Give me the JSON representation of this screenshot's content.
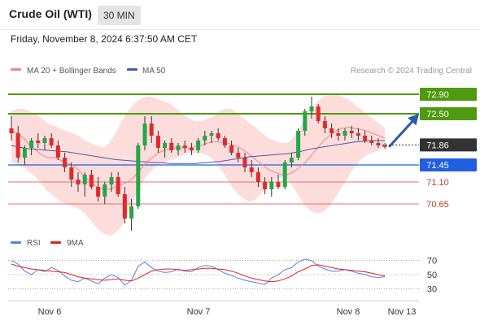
{
  "header": {
    "title": "Crude Oil (WTI)",
    "timeframe": "30 MIN",
    "datetime": "Friday, November 8, 2024 6:37:50 AM CET"
  },
  "colors": {
    "up": "#22a845",
    "down": "#e02a2a",
    "wick": "#333333",
    "band_fill": "#fdd8d8",
    "ma20": "#ee8888",
    "ma50": "#4a5aa8",
    "resistance": "#4f9a0e",
    "support": "#2060e0",
    "pivot": "#333333",
    "lower": "#e87070",
    "rsi": "#5b7ee5",
    "rsi_ma": "#e02020"
  },
  "chart_data": [
    {
      "type": "line",
      "title": "",
      "legend": [
        {
          "name": "MA 20 + Bollinger Bands",
          "color": "#ee8888"
        },
        {
          "name": "MA 50",
          "color": "#4a5aa8"
        }
      ],
      "credit": "Research © 2024 Trading Central",
      "ylim": [
        70.0,
        73.25
      ],
      "levels": [
        {
          "value": "72.90",
          "kind": "resistance"
        },
        {
          "value": "72.50",
          "kind": "resistance"
        },
        {
          "value": "71.86",
          "kind": "current"
        },
        {
          "value": "71.45",
          "kind": "support"
        },
        {
          "value": "71.10",
          "kind": "lower"
        },
        {
          "value": "70.65",
          "kind": "lower"
        }
      ],
      "x_ticks": [
        "Nov 6",
        "Nov 7",
        "Nov 8",
        "Nov 13"
      ],
      "series": [
        {
          "name": "MA 20 + Bollinger Bands",
          "values": [
            72.15,
            72.1,
            72.0,
            71.85,
            71.75,
            71.65,
            71.6,
            71.6,
            71.55,
            71.5,
            71.45,
            71.35,
            71.2,
            71.1,
            71.0,
            70.95,
            70.95,
            71.0,
            71.05,
            71.1,
            71.2,
            71.35,
            71.5,
            71.6,
            71.7,
            71.75,
            71.8,
            71.8,
            71.8,
            71.8,
            71.82,
            71.85,
            71.9,
            71.92,
            71.92,
            71.9,
            71.87,
            71.82,
            71.75,
            71.65,
            71.55,
            71.45,
            71.35,
            71.3,
            71.25,
            71.25,
            71.3,
            71.4,
            71.5,
            71.65,
            71.8,
            71.95,
            72.05,
            72.15,
            72.2,
            72.22,
            72.2,
            72.18,
            72.15,
            72.1,
            72.05,
            72.0
          ]
        },
        {
          "name": "MA 50",
          "values": [
            71.85,
            71.82,
            71.8,
            71.78,
            71.77,
            71.76,
            71.75,
            71.74,
            71.73,
            71.72,
            71.7,
            71.68,
            71.66,
            71.64,
            71.62,
            71.6,
            71.58,
            71.56,
            71.55,
            71.54,
            71.53,
            71.52,
            71.51,
            71.5,
            71.5,
            71.49,
            71.48,
            71.48,
            71.48,
            71.48,
            71.48,
            71.49,
            71.5,
            71.51,
            71.52,
            71.54,
            71.56,
            71.58,
            71.6,
            71.62,
            71.63,
            71.64,
            71.65,
            71.66,
            71.67,
            71.68,
            71.7,
            71.72,
            71.75,
            71.78,
            71.8,
            71.82,
            71.84,
            71.86,
            71.88,
            71.9,
            71.92,
            71.93,
            71.94,
            71.95,
            71.95,
            71.95
          ]
        },
        {
          "name": "upper band",
          "values": [
            72.55,
            72.6,
            72.6,
            72.55,
            72.5,
            72.4,
            72.3,
            72.25,
            72.2,
            72.15,
            72.1,
            72.05,
            71.95,
            71.9,
            71.85,
            71.8,
            71.9,
            72.1,
            72.35,
            72.55,
            72.7,
            72.8,
            72.85,
            72.85,
            72.8,
            72.75,
            72.7,
            72.6,
            72.5,
            72.4,
            72.35,
            72.35,
            72.4,
            72.45,
            72.55,
            72.6,
            72.6,
            72.5,
            72.4,
            72.3,
            72.2,
            72.1,
            72.0,
            71.95,
            71.9,
            71.9,
            72.0,
            72.2,
            72.4,
            72.6,
            72.75,
            72.85,
            72.9,
            72.9,
            72.85,
            72.8,
            72.7,
            72.6,
            72.5,
            72.4,
            72.3,
            72.2
          ]
        },
        {
          "name": "lower band",
          "values": [
            71.5,
            71.45,
            71.4,
            71.3,
            71.2,
            71.05,
            70.9,
            70.8,
            70.7,
            70.65,
            70.6,
            70.55,
            70.45,
            70.3,
            70.15,
            70.05,
            70.0,
            70.05,
            70.2,
            70.45,
            70.75,
            71.0,
            71.2,
            71.35,
            71.45,
            71.5,
            71.55,
            71.6,
            71.65,
            71.7,
            71.7,
            71.7,
            71.65,
            71.55,
            71.4,
            71.2,
            71.0,
            70.85,
            70.75,
            70.7,
            70.75,
            70.9,
            71.05,
            71.15,
            71.2,
            71.15,
            71.0,
            70.8,
            70.6,
            70.5,
            70.45,
            70.5,
            70.6,
            70.8,
            71.0,
            71.2,
            71.4,
            71.55,
            71.65,
            71.7,
            71.75,
            71.8
          ]
        },
        {
          "name": "candles",
          "ohlc": [
            [
              72.2,
              72.45,
              71.95,
              72.1
            ],
            [
              72.1,
              72.25,
              71.5,
              71.6
            ],
            [
              71.6,
              71.85,
              71.45,
              71.8
            ],
            [
              71.8,
              72.0,
              71.65,
              71.95
            ],
            [
              71.95,
              72.1,
              71.8,
              71.9
            ],
            [
              71.9,
              72.05,
              71.75,
              72.0
            ],
            [
              72.0,
              72.1,
              71.8,
              71.85
            ],
            [
              71.85,
              71.95,
              71.55,
              71.6
            ],
            [
              71.6,
              71.7,
              71.3,
              71.4
            ],
            [
              71.4,
              71.5,
              71.0,
              71.15
            ],
            [
              71.15,
              71.3,
              70.9,
              71.05
            ],
            [
              71.05,
              71.3,
              70.8,
              71.25
            ],
            [
              71.25,
              71.35,
              70.95,
              71.0
            ],
            [
              71.0,
              71.2,
              70.7,
              70.8
            ],
            [
              70.8,
              71.1,
              70.65,
              71.05
            ],
            [
              71.05,
              71.3,
              70.9,
              71.2
            ],
            [
              71.2,
              71.3,
              70.8,
              70.85
            ],
            [
              70.85,
              71.0,
              70.25,
              70.35
            ],
            [
              70.35,
              70.75,
              70.1,
              70.6
            ],
            [
              70.6,
              71.9,
              70.55,
              71.85
            ],
            [
              71.85,
              72.45,
              71.75,
              72.3
            ],
            [
              72.3,
              72.45,
              71.9,
              72.05
            ],
            [
              72.05,
              72.15,
              71.7,
              71.8
            ],
            [
              71.8,
              71.95,
              71.6,
              71.9
            ],
            [
              71.9,
              72.0,
              71.7,
              71.75
            ],
            [
              71.75,
              71.9,
              71.65,
              71.85
            ],
            [
              71.85,
              71.95,
              71.7,
              71.8
            ],
            [
              71.8,
              71.9,
              71.65,
              71.75
            ],
            [
              71.75,
              72.0,
              71.7,
              71.95
            ],
            [
              71.95,
              72.15,
              71.85,
              72.05
            ],
            [
              72.05,
              72.15,
              71.9,
              72.1
            ],
            [
              72.1,
              72.2,
              71.95,
              72.0
            ],
            [
              72.0,
              72.05,
              71.8,
              71.85
            ],
            [
              71.85,
              71.95,
              71.65,
              71.7
            ],
            [
              71.7,
              71.8,
              71.5,
              71.6
            ],
            [
              71.6,
              71.7,
              71.3,
              71.4
            ],
            [
              71.4,
              71.55,
              71.2,
              71.3
            ],
            [
              71.3,
              71.4,
              71.0,
              71.1
            ],
            [
              71.1,
              71.2,
              70.85,
              70.95
            ],
            [
              70.95,
              71.2,
              70.8,
              71.1
            ],
            [
              71.1,
              71.25,
              70.95,
              71.0
            ],
            [
              71.0,
              71.55,
              70.95,
              71.5
            ],
            [
              71.5,
              71.7,
              71.4,
              71.6
            ],
            [
              71.6,
              72.2,
              71.55,
              72.15
            ],
            [
              72.15,
              72.6,
              72.05,
              72.55
            ],
            [
              72.55,
              72.85,
              72.4,
              72.65
            ],
            [
              72.65,
              72.7,
              72.3,
              72.35
            ],
            [
              72.35,
              72.45,
              72.1,
              72.2
            ],
            [
              72.2,
              72.3,
              72.0,
              72.1
            ],
            [
              72.1,
              72.2,
              71.95,
              72.05
            ],
            [
              72.05,
              72.2,
              71.95,
              72.15
            ],
            [
              72.15,
              72.25,
              72.0,
              72.1
            ],
            [
              72.1,
              72.2,
              71.95,
              72.05
            ],
            [
              72.05,
              72.15,
              71.9,
              71.95
            ],
            [
              71.95,
              72.05,
              71.85,
              71.9
            ],
            [
              71.9,
              72.0,
              71.8,
              71.85
            ],
            [
              71.85,
              71.9,
              71.78,
              71.82
            ]
          ]
        }
      ]
    },
    {
      "type": "line",
      "legend": [
        {
          "name": "RSI",
          "color": "#5b7ee5"
        },
        {
          "name": "9MA",
          "color": "#e02020"
        }
      ],
      "ylim": [
        20,
        80
      ],
      "y_ticks": [
        70,
        50,
        30
      ],
      "series": [
        {
          "name": "RSI",
          "values": [
            70,
            65,
            55,
            50,
            57,
            54,
            60,
            56,
            48,
            42,
            40,
            45,
            41,
            37,
            45,
            50,
            46,
            35,
            42,
            62,
            68,
            60,
            55,
            53,
            54,
            58,
            55,
            54,
            60,
            63,
            62,
            57,
            52,
            49,
            45,
            42,
            40,
            38,
            36,
            45,
            50,
            57,
            60,
            68,
            72,
            70,
            62,
            58,
            55,
            55,
            57,
            55,
            52,
            50,
            47,
            46,
            47
          ]
        },
        {
          "name": "9MA",
          "values": [
            65,
            62,
            60,
            58,
            57,
            56,
            55,
            54,
            53,
            50,
            47,
            45,
            44,
            43,
            42,
            43,
            44,
            42,
            41,
            45,
            50,
            55,
            57,
            58,
            58,
            57,
            56,
            57,
            58,
            59,
            59,
            58,
            57,
            55,
            52,
            48,
            45,
            43,
            41,
            40,
            41,
            44,
            48,
            54,
            58,
            63,
            64,
            62,
            60,
            58,
            57,
            56,
            55,
            54,
            52,
            50,
            48
          ]
        }
      ]
    }
  ]
}
